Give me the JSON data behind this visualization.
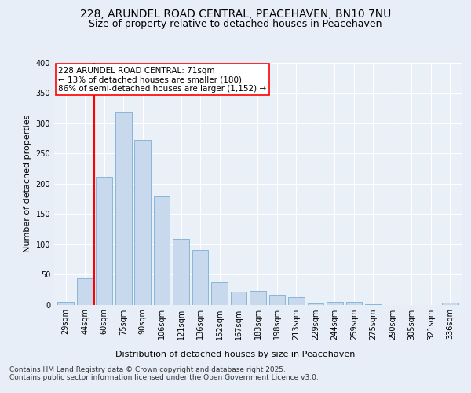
{
  "title_line1": "228, ARUNDEL ROAD CENTRAL, PEACEHAVEN, BN10 7NU",
  "title_line2": "Size of property relative to detached houses in Peacehaven",
  "xlabel": "Distribution of detached houses by size in Peacehaven",
  "ylabel": "Number of detached properties",
  "categories": [
    "29sqm",
    "44sqm",
    "60sqm",
    "75sqm",
    "90sqm",
    "106sqm",
    "121sqm",
    "136sqm",
    "152sqm",
    "167sqm",
    "183sqm",
    "198sqm",
    "213sqm",
    "229sqm",
    "244sqm",
    "259sqm",
    "275sqm",
    "290sqm",
    "305sqm",
    "321sqm",
    "336sqm"
  ],
  "values": [
    4,
    44,
    212,
    318,
    272,
    179,
    108,
    91,
    37,
    22,
    23,
    16,
    13,
    2,
    5,
    5,
    1,
    0,
    0,
    0,
    3
  ],
  "bar_color": "#c9d9ed",
  "bar_edge_color": "#7bafd4",
  "vline_x": 2,
  "vline_color": "red",
  "annotation_text": "228 ARUNDEL ROAD CENTRAL: 71sqm\n← 13% of detached houses are smaller (180)\n86% of semi-detached houses are larger (1,152) →",
  "annotation_box_color": "white",
  "annotation_box_edge": "red",
  "footer_text": "Contains HM Land Registry data © Crown copyright and database right 2025.\nContains public sector information licensed under the Open Government Licence v3.0.",
  "ylim": [
    0,
    400
  ],
  "yticks": [
    0,
    50,
    100,
    150,
    200,
    250,
    300,
    350,
    400
  ],
  "background_color": "#e8eef7",
  "plot_bg_color": "#eaf0f8",
  "title_fontsize": 10,
  "subtitle_fontsize": 9,
  "axis_label_fontsize": 8,
  "tick_fontsize": 7,
  "annotation_fontsize": 7.5,
  "footer_fontsize": 6.5
}
